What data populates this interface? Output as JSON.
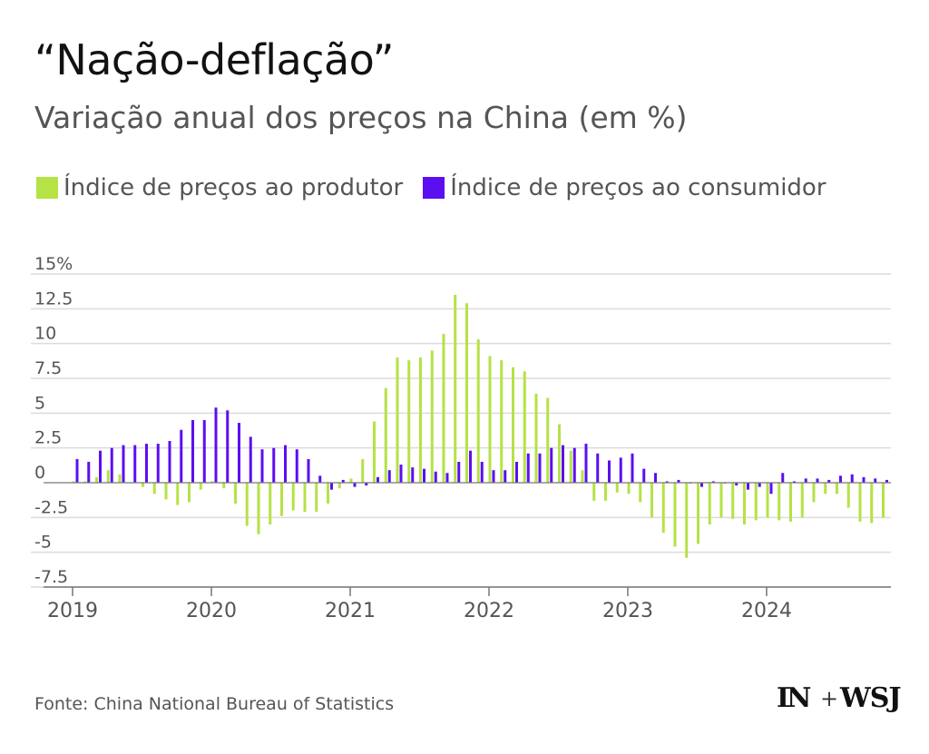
{
  "header": {
    "title": "“Nação-deflação”",
    "subtitle": "Variação anual dos preços na China (em %)"
  },
  "footer": {
    "source": "Fonte: China National Bureau of Statistics",
    "logo_in": "IN",
    "logo_plus": "+",
    "logo_wsj": "WSJ"
  },
  "colors": {
    "ppi": "#b5e245",
    "cpi": "#5b0ff0",
    "grid": "#dcdcdc",
    "axis": "#777777",
    "text": "#555555"
  },
  "chart_data": {
    "type": "bar",
    "y_unit": "%",
    "ylim": [
      -7.5,
      15
    ],
    "yticks": [
      {
        "value": 15,
        "label": "15%"
      },
      {
        "value": 12.5,
        "label": "12.5"
      },
      {
        "value": 10,
        "label": "10"
      },
      {
        "value": 7.5,
        "label": "7.5"
      },
      {
        "value": 5,
        "label": "5"
      },
      {
        "value": 2.5,
        "label": "2.5"
      },
      {
        "value": 0,
        "label": "0"
      },
      {
        "value": -2.5,
        "label": "-2.5"
      },
      {
        "value": -5,
        "label": "-5"
      },
      {
        "value": -7.5,
        "label": "-7.5"
      }
    ],
    "x_start": "2019-01",
    "year_labels": [
      "2019",
      "2020",
      "2021",
      "2022",
      "2023",
      "2024"
    ],
    "grid": true,
    "legend_position": "top-left",
    "series": [
      {
        "name": "Índice de preços ao produtor",
        "color": "#b5e245",
        "values": [
          0.1,
          0.1,
          0.4,
          0.9,
          0.6,
          0.0,
          -0.3,
          -0.8,
          -1.2,
          -1.6,
          -1.4,
          -0.5,
          0.1,
          -0.4,
          -1.5,
          -3.1,
          -3.7,
          -3.0,
          -2.4,
          -2.0,
          -2.1,
          -2.1,
          -1.5,
          -0.4,
          0.3,
          1.7,
          4.4,
          6.8,
          9.0,
          8.8,
          9.0,
          9.5,
          10.7,
          13.5,
          12.9,
          10.3,
          9.1,
          8.8,
          8.3,
          8.0,
          6.4,
          6.1,
          4.2,
          2.3,
          0.9,
          -1.3,
          -1.3,
          -0.7,
          -0.8,
          -1.4,
          -2.5,
          -3.6,
          -4.6,
          -5.4,
          -4.4,
          -3.0,
          -2.5,
          -2.6,
          -3.0,
          -2.7,
          -2.5,
          -2.7,
          -2.8,
          -2.5,
          -1.4,
          -0.8,
          -0.8,
          -1.8,
          -2.8,
          -2.9,
          -2.5
        ]
      },
      {
        "name": "Índice de preços ao consumidor",
        "color": "#5b0ff0",
        "values": [
          1.7,
          1.5,
          2.3,
          2.5,
          2.7,
          2.7,
          2.8,
          2.8,
          3.0,
          3.8,
          4.5,
          4.5,
          5.4,
          5.2,
          4.3,
          3.3,
          2.4,
          2.5,
          2.7,
          2.4,
          1.7,
          0.5,
          -0.5,
          0.2,
          -0.3,
          -0.2,
          0.4,
          0.9,
          1.3,
          1.1,
          1.0,
          0.8,
          0.7,
          1.5,
          2.3,
          1.5,
          0.9,
          0.9,
          1.5,
          2.1,
          2.1,
          2.5,
          2.7,
          2.5,
          2.8,
          2.1,
          1.6,
          1.8,
          2.1,
          1.0,
          0.7,
          0.1,
          0.2,
          0.0,
          -0.3,
          0.1,
          0.0,
          -0.2,
          -0.5,
          -0.3,
          -0.8,
          0.7,
          0.1,
          0.3,
          0.3,
          0.2,
          0.5,
          0.6,
          0.4,
          0.3,
          0.2
        ]
      }
    ]
  }
}
